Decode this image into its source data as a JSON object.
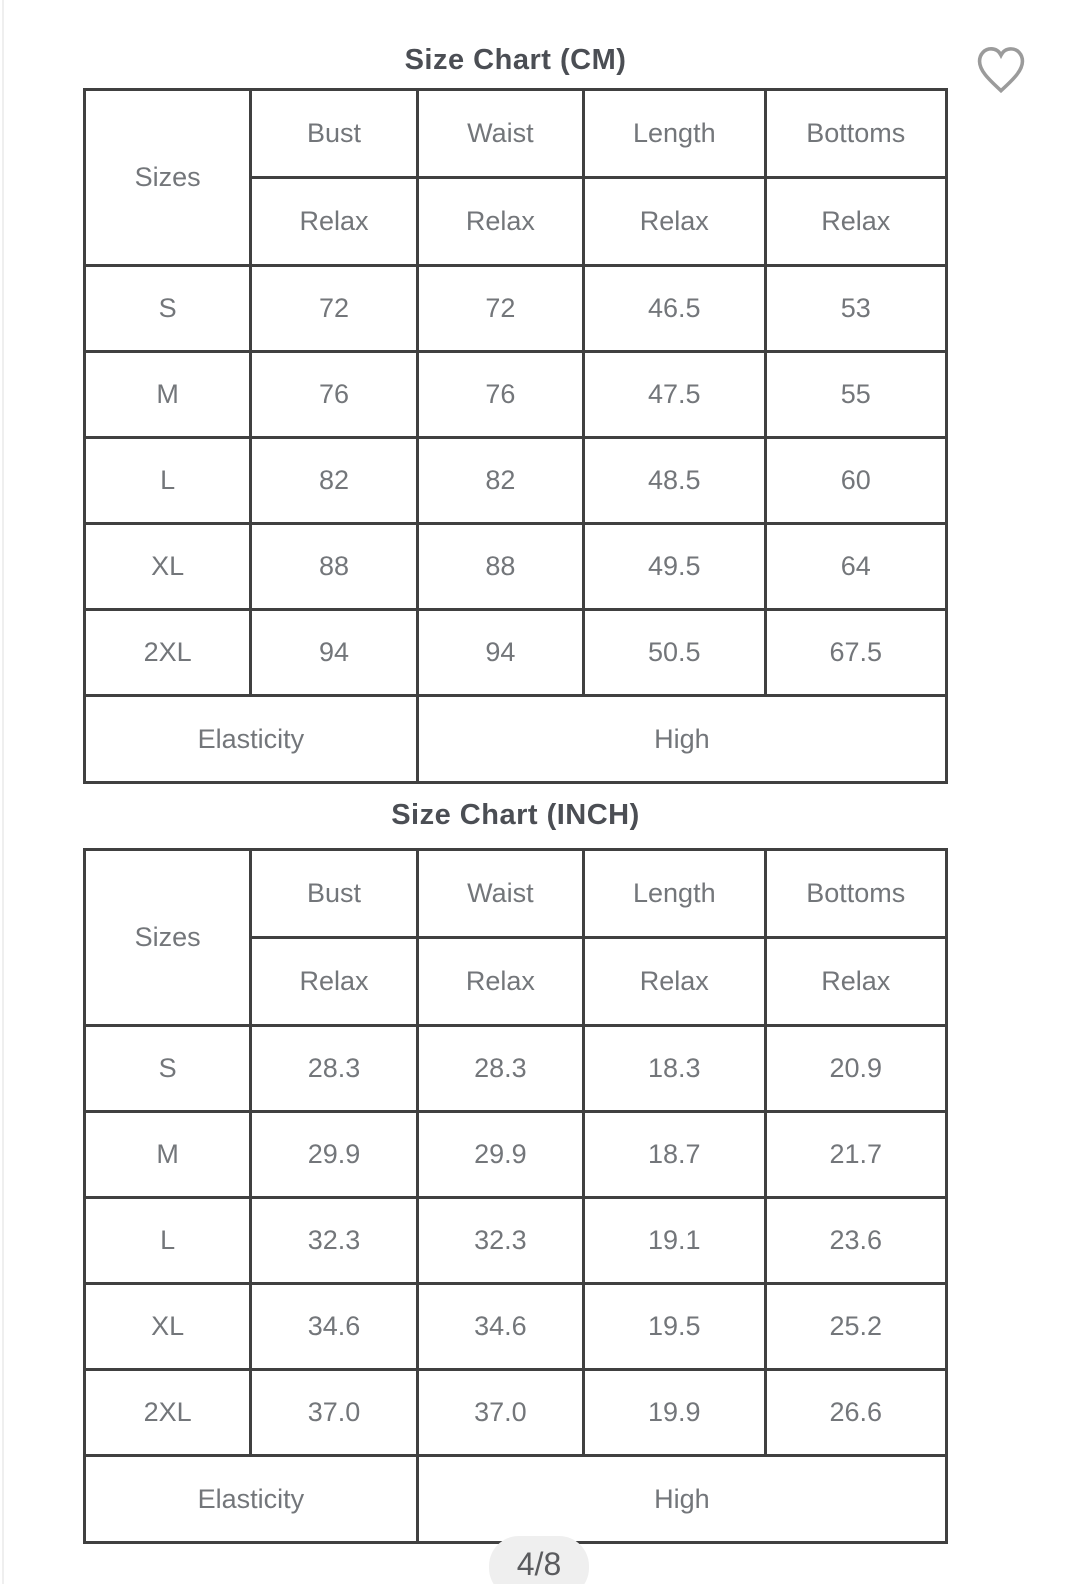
{
  "colors": {
    "border": "#404040",
    "cell_text": "#73767a",
    "title_text": "#4b4e54",
    "pill_bg": "#efefef",
    "pill_text": "#5a5b5e",
    "heart_stroke": "#9b9b9b"
  },
  "wishlist": {
    "icon": "heart-outline"
  },
  "carousel": {
    "page_indicator": "4/8"
  },
  "tables": [
    {
      "id": "cm",
      "title": "Size Chart (CM)",
      "corner_label": "Sizes",
      "measure_columns": [
        "Bust",
        "Waist",
        "Length",
        "Bottoms"
      ],
      "fit_labels": [
        "Relax",
        "Relax",
        "Relax",
        "Relax"
      ],
      "rows": [
        {
          "size": "S",
          "values": [
            "72",
            "72",
            "46.5",
            "53"
          ]
        },
        {
          "size": "M",
          "values": [
            "76",
            "76",
            "47.5",
            "55"
          ]
        },
        {
          "size": "L",
          "values": [
            "82",
            "82",
            "48.5",
            "60"
          ]
        },
        {
          "size": "XL",
          "values": [
            "88",
            "88",
            "49.5",
            "64"
          ]
        },
        {
          "size": "2XL",
          "values": [
            "94",
            "94",
            "50.5",
            "67.5"
          ]
        }
      ],
      "footer": {
        "label": "Elasticity",
        "value": "High"
      }
    },
    {
      "id": "inch",
      "title": "Size Chart (INCH)",
      "corner_label": "Sizes",
      "measure_columns": [
        "Bust",
        "Waist",
        "Length",
        "Bottoms"
      ],
      "fit_labels": [
        "Relax",
        "Relax",
        "Relax",
        "Relax"
      ],
      "rows": [
        {
          "size": "S",
          "values": [
            "28.3",
            "28.3",
            "18.3",
            "20.9"
          ]
        },
        {
          "size": "M",
          "values": [
            "29.9",
            "29.9",
            "18.7",
            "21.7"
          ]
        },
        {
          "size": "L",
          "values": [
            "32.3",
            "32.3",
            "19.1",
            "23.6"
          ]
        },
        {
          "size": "XL",
          "values": [
            "34.6",
            "34.6",
            "19.5",
            "25.2"
          ]
        },
        {
          "size": "2XL",
          "values": [
            "37.0",
            "37.0",
            "19.9",
            "26.6"
          ]
        }
      ],
      "footer": {
        "label": "Elasticity",
        "value": "High"
      }
    }
  ]
}
